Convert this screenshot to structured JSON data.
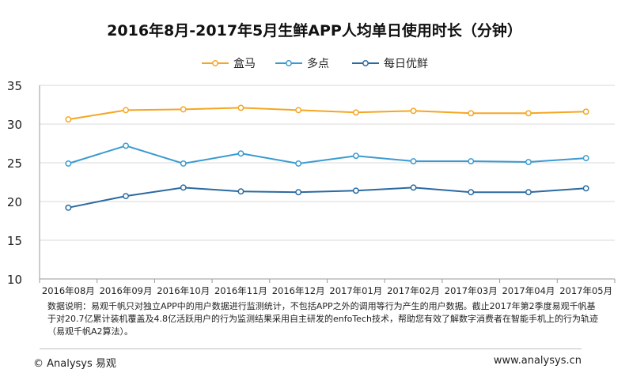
{
  "chart_data": {
    "type": "line",
    "title": "2016年8月-2017年5月生鲜APP人均单日使用时长（分钟）",
    "categories": [
      "2016年08月",
      "2016年09月",
      "2016年10月",
      "2016年11月",
      "2016年12月",
      "2017年01月",
      "2017年02月",
      "2017年03月",
      "2017年04月",
      "2017年05月"
    ],
    "series": [
      {
        "name": "盒马",
        "color": "#F5A623",
        "values": [
          30.6,
          31.8,
          31.9,
          32.1,
          31.8,
          31.5,
          31.7,
          31.4,
          31.4,
          31.6
        ]
      },
      {
        "name": "多点",
        "color": "#3A9AD0",
        "values": [
          24.9,
          27.2,
          24.9,
          26.2,
          24.9,
          25.9,
          25.2,
          25.2,
          25.1,
          25.6
        ]
      },
      {
        "name": "每日优鲜",
        "color": "#2B6AA0",
        "values": [
          19.2,
          20.7,
          21.8,
          21.3,
          21.2,
          21.4,
          21.8,
          21.2,
          21.2,
          21.7
        ]
      }
    ],
    "ylim": [
      10,
      35
    ],
    "yticks": [
      10,
      15,
      20,
      25,
      30,
      35
    ],
    "grid": true,
    "legend": "top"
  },
  "note": "数据说明：易观千帆只对独立APP中的用户数据进行监测统计，不包括APP之外的调用等行为产生的用户数据。截止2017年第2季度易观千帆基于对20.7亿累计装机覆盖及4.8亿活跃用户的行为监测结果采用自主研发的enfoTech技术，帮助您有效了解数字消费者在智能手机上的行为轨迹（易观千帆A2算法）。",
  "footer": {
    "brand": "© Analysys 易观",
    "url": "www.analysys.cn"
  }
}
